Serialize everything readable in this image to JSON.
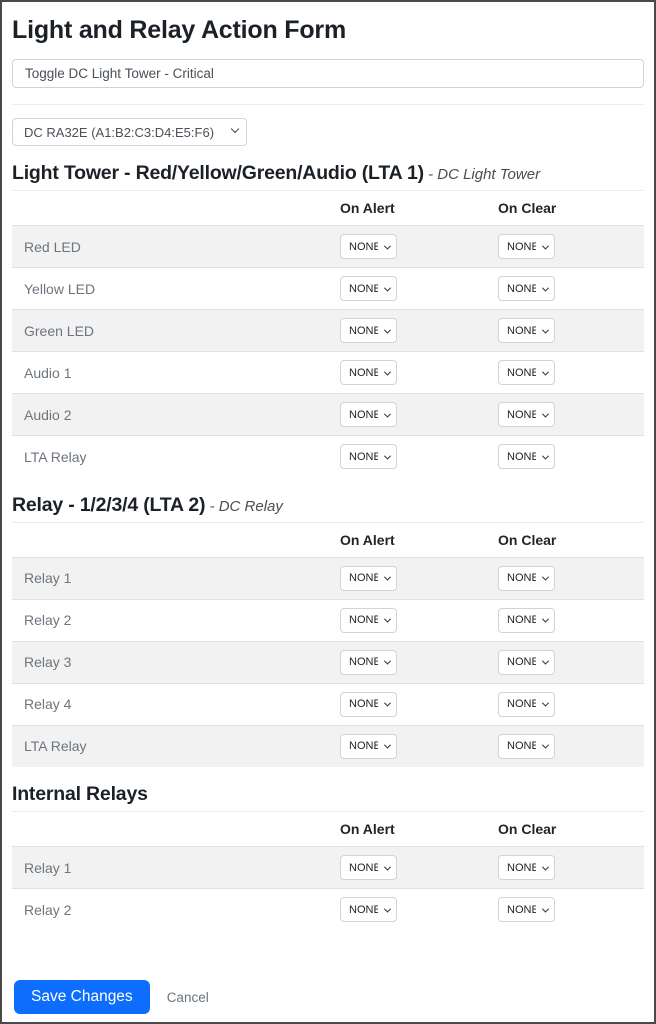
{
  "header": {
    "title": "Light and Relay Action Form"
  },
  "action_name_input": {
    "value": "Toggle DC Light Tower - Critical"
  },
  "device_select": {
    "value": "DC RA32E (A1:B2:C3:D4:E5:F6)"
  },
  "table_headers": {
    "on_alert": "On Alert",
    "on_clear": "On Clear"
  },
  "sections": [
    {
      "title": "Light Tower - Red/Yellow/Green/Audio (LTA 1)",
      "subtitle": " - DC Light Tower",
      "rows": [
        {
          "label": "Red LED",
          "on_alert": "NONE",
          "on_clear": "NONE"
        },
        {
          "label": "Yellow LED",
          "on_alert": "NONE",
          "on_clear": "NONE"
        },
        {
          "label": "Green LED",
          "on_alert": "NONE",
          "on_clear": "NONE"
        },
        {
          "label": "Audio 1",
          "on_alert": "NONE",
          "on_clear": "NONE"
        },
        {
          "label": "Audio 2",
          "on_alert": "NONE",
          "on_clear": "NONE"
        },
        {
          "label": "LTA Relay",
          "on_alert": "NONE",
          "on_clear": "NONE"
        }
      ]
    },
    {
      "title": "Relay - 1/2/3/4 (LTA 2)",
      "subtitle": " - DC Relay",
      "rows": [
        {
          "label": "Relay 1",
          "on_alert": "NONE",
          "on_clear": "NONE"
        },
        {
          "label": "Relay 2",
          "on_alert": "NONE",
          "on_clear": "NONE"
        },
        {
          "label": "Relay 3",
          "on_alert": "NONE",
          "on_clear": "NONE"
        },
        {
          "label": "Relay 4",
          "on_alert": "NONE",
          "on_clear": "NONE"
        },
        {
          "label": "LTA Relay",
          "on_alert": "NONE",
          "on_clear": "NONE"
        }
      ]
    },
    {
      "title": "Internal Relays",
      "subtitle": "",
      "rows": [
        {
          "label": "Relay 1",
          "on_alert": "NONE",
          "on_clear": "NONE"
        },
        {
          "label": "Relay 2",
          "on_alert": "NONE",
          "on_clear": "NONE"
        }
      ]
    }
  ],
  "footer": {
    "save_label": "Save Changes",
    "cancel_label": "Cancel"
  },
  "colors": {
    "primary": "#0d6efd",
    "stripe": "#f2f2f2",
    "table_border": "#dee2e6",
    "muted_text": "#6c757d"
  }
}
